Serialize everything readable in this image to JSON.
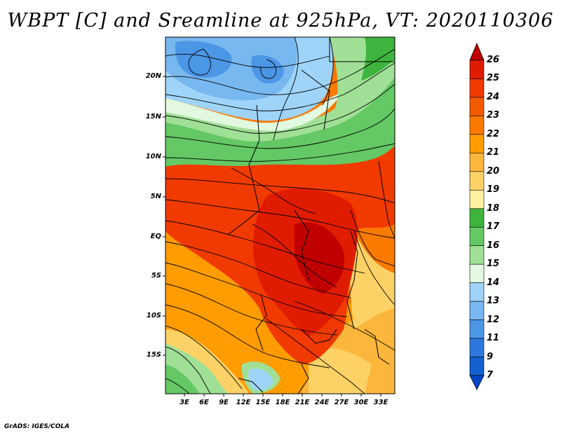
{
  "title": "WBPT [C] and Sreamline at 925hPa, VT: 2020110306",
  "credit": "GrADS: IGES/COLA",
  "map": {
    "lat_labels": [
      "20N",
      "15N",
      "10N",
      "5N",
      "EQ",
      "5S",
      "10S",
      "15S"
    ],
    "lon_labels": [
      "3E",
      "6E",
      "9E",
      "12E",
      "15E",
      "18E",
      "21E",
      "24E",
      "27E",
      "30E",
      "33E"
    ]
  },
  "colorbar": {
    "labels": [
      "26",
      "25",
      "24",
      "23",
      "22",
      "21",
      "20",
      "19",
      "18",
      "17",
      "16",
      "15",
      "14",
      "13",
      "12",
      "11",
      "9",
      "7"
    ],
    "colors": [
      "#c00000",
      "#e01c00",
      "#f03a00",
      "#f45a00",
      "#fa7a00",
      "#ff9c00",
      "#fbb63c",
      "#fcd267",
      "#fdf0a0",
      "#3eb43e",
      "#64c864",
      "#9fe096",
      "#e2f8e0",
      "#9fd4f8",
      "#78b8f0",
      "#4c96e6",
      "#2c78dc",
      "#1460d0",
      "#0046c8"
    ]
  }
}
